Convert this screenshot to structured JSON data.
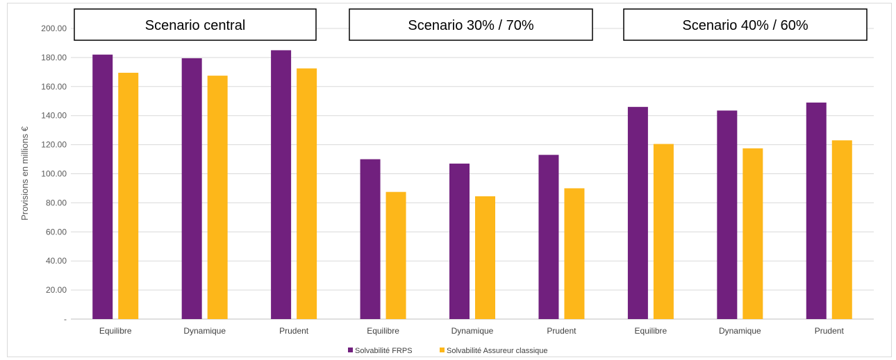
{
  "chart_data": {
    "type": "bar",
    "ylabel": "Provisions en millions €",
    "ylim": [
      0,
      200
    ],
    "yticks": [
      0,
      20,
      40,
      60,
      80,
      100,
      120,
      140,
      160,
      180,
      200
    ],
    "ytick_labels": [
      "-",
      "20.00",
      "40.00",
      "60.00",
      "80.00",
      "100.00",
      "120.00",
      "140.00",
      "160.00",
      "180.00",
      "200.00"
    ],
    "grid": "horizontal",
    "legend_position": "bottom",
    "categories": [
      "Equilibre",
      "Dynamique",
      "Prudent",
      "Equilibre",
      "Dynamique",
      "Prudent",
      "Equilibre",
      "Dynamique",
      "Prudent"
    ],
    "groups": [
      "Scenario central",
      "Scenario 30% / 70%",
      "Scenario 40% / 60%"
    ],
    "series": [
      {
        "name": "Solvabilité FRPS",
        "color": "#71207e",
        "values": [
          182,
          179.5,
          185,
          110,
          107,
          113,
          146,
          143.5,
          149
        ]
      },
      {
        "name": "Solvabilité Assureur classique",
        "color": "#fdb71a",
        "values": [
          169.5,
          167.5,
          172.5,
          87.5,
          84.5,
          90,
          120.5,
          117.5,
          123
        ]
      }
    ]
  }
}
